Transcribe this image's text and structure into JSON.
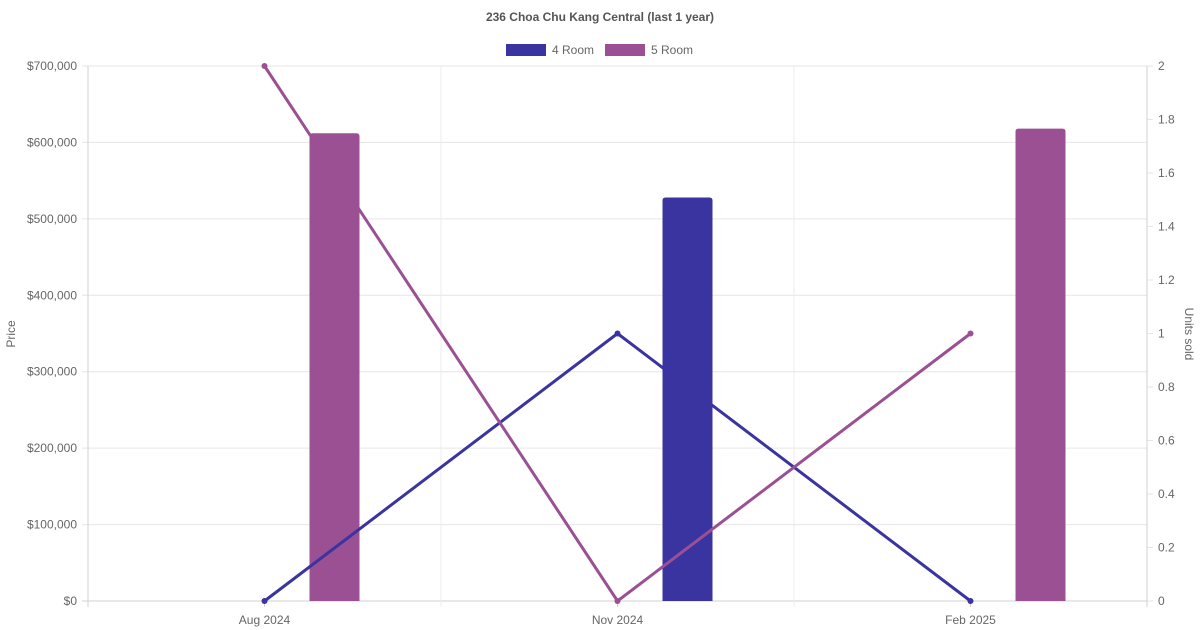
{
  "chart_data": {
    "type": "bar",
    "title": "236 Choa Chu Kang Central (last 1 year)",
    "categories": [
      "Aug 2024",
      "Nov 2024",
      "Feb 2025"
    ],
    "y_left": {
      "label": "Price",
      "ylim": [
        0,
        700000
      ],
      "ticks": [
        "$0",
        "$100,000",
        "$200,000",
        "$300,000",
        "$400,000",
        "$500,000",
        "$600,000",
        "$700,000"
      ]
    },
    "y_right": {
      "label": "Units sold",
      "ylim": [
        0,
        2
      ],
      "ticks": [
        "0",
        "0.2",
        "0.4",
        "0.6",
        "0.8",
        "1",
        "1.2",
        "1.4",
        "1.6",
        "1.8",
        "2"
      ]
    },
    "grid": true,
    "legend_position": "top-center",
    "series": [
      {
        "name": "4 Room",
        "color": "#3a34a0",
        "bar_values": [
          null,
          528000,
          null
        ],
        "units_sold": [
          0,
          1,
          0
        ]
      },
      {
        "name": "5 Room",
        "color": "#9c5094",
        "bar_values": [
          612000,
          null,
          618000
        ],
        "units_sold": [
          2,
          0,
          1
        ]
      }
    ]
  }
}
